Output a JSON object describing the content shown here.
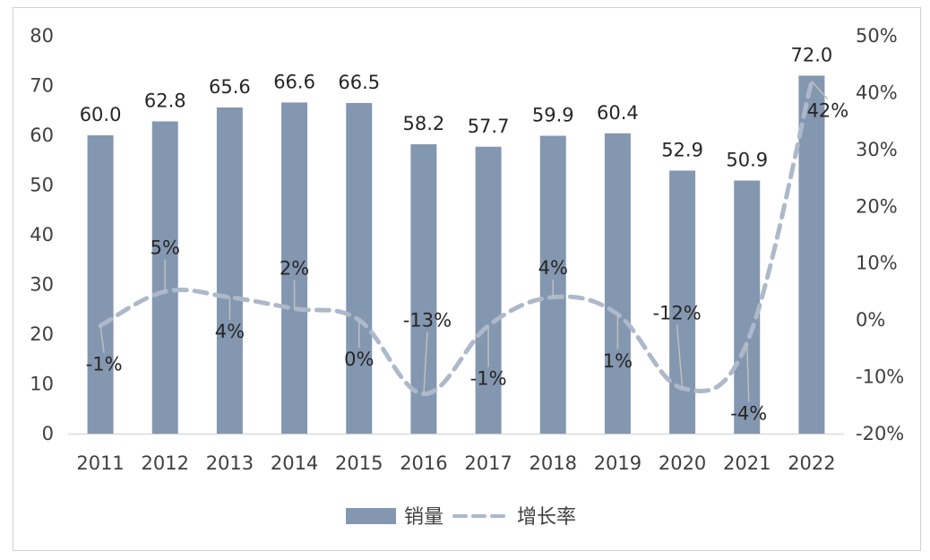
{
  "chart_data": {
    "type": "bar",
    "categories": [
      "2011",
      "2012",
      "2013",
      "2014",
      "2015",
      "2016",
      "2017",
      "2018",
      "2019",
      "2020",
      "2021",
      "2022"
    ],
    "series": [
      {
        "name": "销量",
        "kind": "bar",
        "axis": "left",
        "values": [
          60.0,
          62.8,
          65.6,
          66.6,
          66.5,
          58.2,
          57.7,
          59.9,
          60.4,
          52.9,
          50.9,
          72.0
        ],
        "labels": [
          "60.0",
          "62.8",
          "65.6",
          "66.6",
          "66.5",
          "58.2",
          "57.7",
          "59.9",
          "60.4",
          "52.9",
          "50.9",
          "72.0"
        ],
        "color": "#8497b0"
      },
      {
        "name": "增长率",
        "kind": "line-dashed",
        "axis": "right",
        "values": [
          -1,
          5,
          4,
          2,
          0,
          -13,
          -1,
          4,
          1,
          -12,
          -4,
          42
        ],
        "labels": [
          "-1%",
          "5%",
          "4%",
          "2%",
          "0%",
          "-13%",
          "-1%",
          "4%",
          "1%",
          "-12%",
          "-4%",
          "42%"
        ],
        "color": "#adb9ca"
      }
    ],
    "y_left": {
      "min": 0,
      "max": 80,
      "ticks": [
        "0",
        "10",
        "20",
        "30",
        "40",
        "50",
        "60",
        "70",
        "80"
      ]
    },
    "y_right": {
      "min": -20,
      "max": 50,
      "ticks": [
        "-20%",
        "-10%",
        "0%",
        "10%",
        "20%",
        "30%",
        "40%",
        "50%"
      ]
    },
    "grid": false,
    "legend_position": "bottom"
  }
}
